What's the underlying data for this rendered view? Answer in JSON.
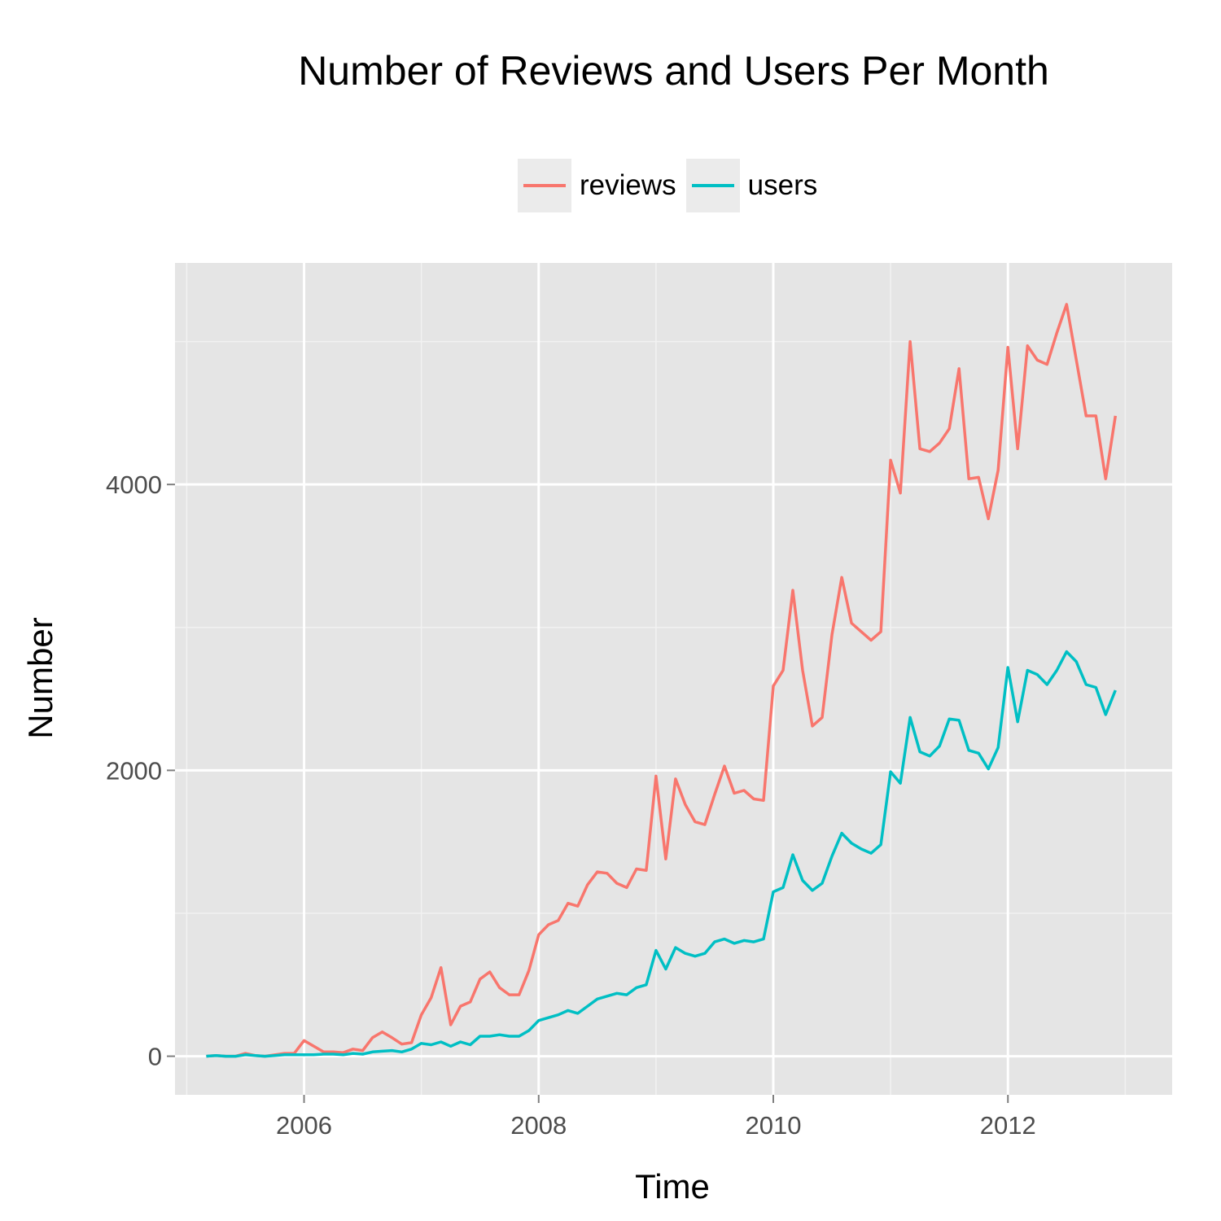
{
  "chart_data": {
    "type": "line",
    "title": "Number of Reviews and Users Per Month",
    "xlabel": "Time",
    "ylabel": "Number",
    "xlim": [
      2004.9,
      2013.4
    ],
    "ylim": [
      -270,
      5550
    ],
    "x_ticks": [
      2006,
      2008,
      2010,
      2012
    ],
    "x_tick_labels": [
      "2006",
      "2008",
      "2010",
      "2012"
    ],
    "y_ticks": [
      0,
      2000,
      4000
    ],
    "y_tick_labels": [
      "0",
      "2000",
      "4000"
    ],
    "grid": true,
    "legend_position": "top",
    "x_start": "2005-03",
    "x_step": "1 month",
    "series": [
      {
        "name": "reviews",
        "color": "#f8766d",
        "values": [
          0,
          5,
          0,
          0,
          20,
          5,
          0,
          10,
          20,
          20,
          110,
          70,
          30,
          30,
          25,
          50,
          40,
          130,
          170,
          130,
          85,
          95,
          290,
          410,
          620,
          220,
          350,
          380,
          540,
          590,
          480,
          430,
          430,
          600,
          850,
          920,
          950,
          1070,
          1050,
          1200,
          1290,
          1280,
          1210,
          1180,
          1310,
          1300,
          1960,
          1380,
          1940,
          1760,
          1640,
          1620,
          1830,
          2030,
          1840,
          1860,
          1800,
          1790,
          2590,
          2700,
          3260,
          2700,
          2310,
          2370,
          2950,
          3350,
          3030,
          2970,
          2910,
          2970,
          4170,
          3940,
          5000,
          4250,
          4230,
          4290,
          4390,
          4810,
          4040,
          4050,
          3760,
          4100,
          4960,
          4250,
          4970,
          4870,
          4840,
          5060,
          5260,
          4870,
          4480,
          4480,
          4040,
          4480
        ]
      },
      {
        "name": "users",
        "color": "#00bfc4",
        "values": [
          0,
          5,
          0,
          0,
          10,
          5,
          0,
          5,
          10,
          10,
          10,
          10,
          15,
          15,
          10,
          20,
          15,
          30,
          35,
          40,
          30,
          50,
          90,
          80,
          100,
          70,
          100,
          80,
          140,
          140,
          150,
          140,
          140,
          180,
          250,
          270,
          290,
          320,
          300,
          350,
          400,
          420,
          440,
          430,
          480,
          500,
          740,
          610,
          760,
          720,
          700,
          720,
          800,
          820,
          790,
          810,
          800,
          820,
          1150,
          1180,
          1410,
          1230,
          1160,
          1210,
          1400,
          1560,
          1490,
          1450,
          1420,
          1480,
          1990,
          1910,
          2370,
          2130,
          2100,
          2170,
          2360,
          2350,
          2140,
          2120,
          2010,
          2160,
          2720,
          2340,
          2700,
          2670,
          2600,
          2700,
          2830,
          2760,
          2600,
          2580,
          2390,
          2560
        ]
      }
    ]
  }
}
